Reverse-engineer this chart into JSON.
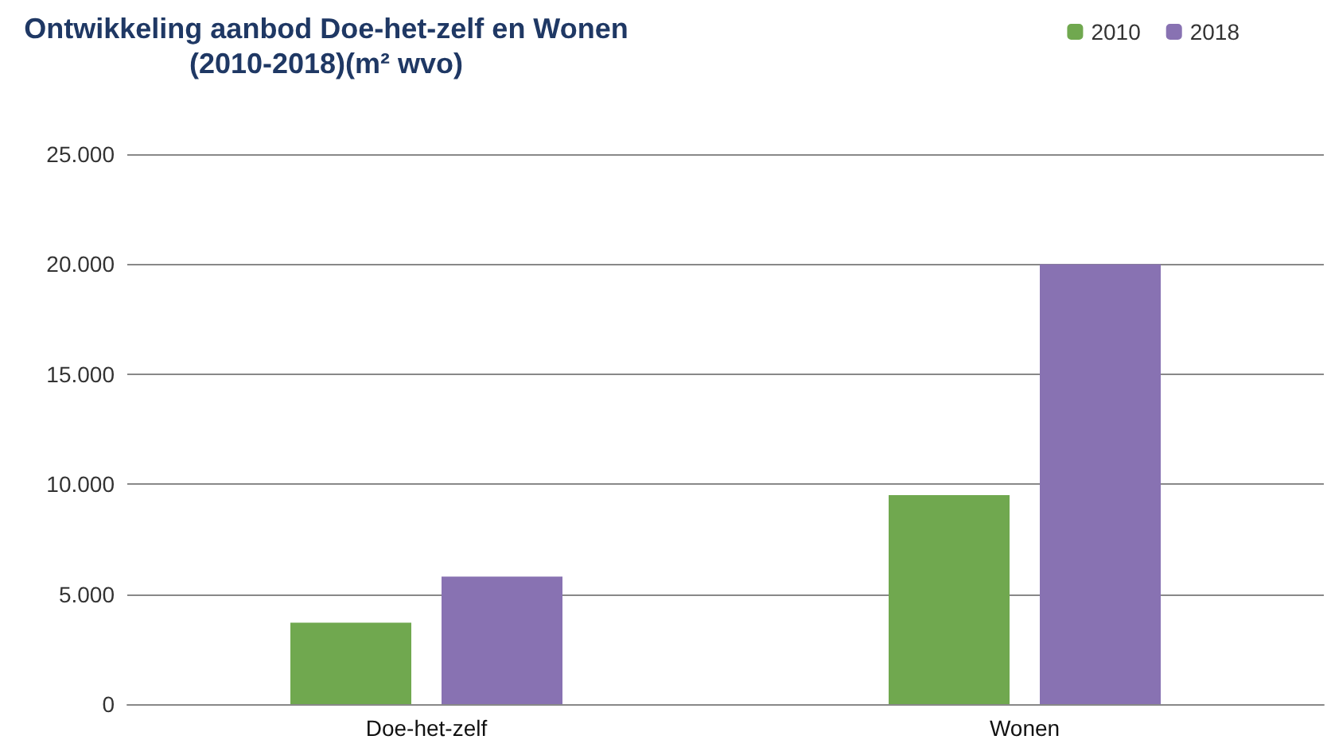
{
  "chart_data": {
    "type": "bar",
    "title": "Ontwikkeling aanbod Doe-het-zelf en Wonen\n(2010-2018)(m² wvo)",
    "categories": [
      "Doe-het-zelf",
      "Wonen"
    ],
    "series": [
      {
        "name": "2010",
        "color": "#70a84f",
        "values": [
          3700,
          9500
        ]
      },
      {
        "name": "2018",
        "color": "#8872b2",
        "values": [
          5800,
          20000
        ]
      }
    ],
    "ylim": [
      0,
      25000
    ],
    "yticks": [
      0,
      {
        "value": 5000,
        "label": "5.000"
      },
      {
        "value": 10000,
        "label": "10.000"
      },
      {
        "value": 15000,
        "label": "15.000"
      },
      {
        "value": 20000,
        "label": "20.000"
      },
      {
        "value": 25000,
        "label": "25.000"
      }
    ],
    "grid": "y",
    "legend": "top right"
  }
}
